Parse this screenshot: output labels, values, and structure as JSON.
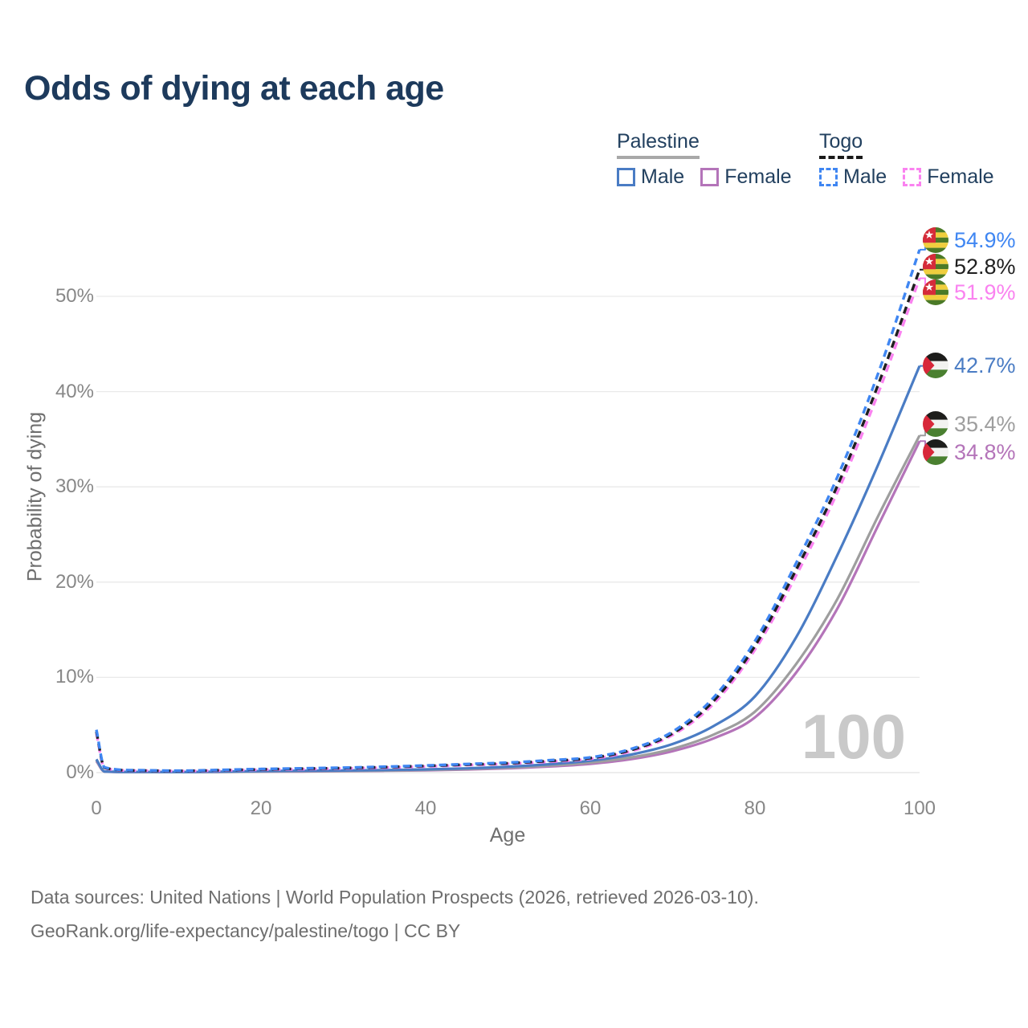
{
  "title": "Odds of dying at each age",
  "legend": {
    "groups": [
      {
        "name": "Palestine",
        "line_style": "solid",
        "line_color": "#a8a8a8",
        "items": [
          {
            "label": "Male",
            "color": "#4a7cc4",
            "style": "solid"
          },
          {
            "label": "Female",
            "color": "#b474b9",
            "style": "solid"
          }
        ]
      },
      {
        "name": "Togo",
        "line_style": "dashed",
        "line_color": "#1a1a1a",
        "items": [
          {
            "label": "Male",
            "color": "#3f86f2",
            "style": "dashed"
          },
          {
            "label": "Female",
            "color": "#fa82f0",
            "style": "dashed"
          }
        ]
      }
    ]
  },
  "age_indicator": "100",
  "footer": {
    "line1": "Data sources: United Nations | World Population Prospects (2026, retrieved 2026-03-10).",
    "line2": "GeoRank.org/life-expectancy/palestine/togo | CC BY"
  },
  "chart_data": {
    "type": "line",
    "title": "Odds of dying at each age",
    "xlabel": "Age",
    "ylabel": "Probability of dying",
    "x_ticks": [
      0,
      20,
      40,
      60,
      80,
      100
    ],
    "y_ticks": [
      "0%",
      "10%",
      "20%",
      "30%",
      "40%",
      "50%"
    ],
    "xlim": [
      0,
      100
    ],
    "ylim": [
      0,
      58
    ],
    "grid": "horizontal",
    "legend_position": "top-right",
    "ages": [
      0,
      1,
      5,
      10,
      15,
      20,
      25,
      30,
      35,
      40,
      45,
      50,
      55,
      60,
      65,
      70,
      75,
      80,
      85,
      90,
      95,
      100
    ],
    "series": [
      {
        "name": "Togo Male",
        "country": "Togo",
        "sex": "male",
        "flag": "togo",
        "color": "#3f86f2",
        "dash": true,
        "end_label": "54.9%",
        "end_value": 54.9,
        "values": [
          4.5,
          0.55,
          0.25,
          0.2,
          0.28,
          0.38,
          0.45,
          0.52,
          0.62,
          0.75,
          0.9,
          1.05,
          1.3,
          1.6,
          2.5,
          4.3,
          7.9,
          13.8,
          22.0,
          31.0,
          42.0,
          54.9
        ]
      },
      {
        "name": "Togo",
        "country": "Togo",
        "sex": "both",
        "flag": "togo",
        "color": "#1f1f1f",
        "dash": true,
        "end_label": "52.8%",
        "end_value": 52.8,
        "values": [
          4.3,
          0.5,
          0.22,
          0.18,
          0.25,
          0.34,
          0.41,
          0.48,
          0.57,
          0.7,
          0.84,
          0.98,
          1.22,
          1.52,
          2.38,
          4.12,
          7.55,
          13.3,
          21.3,
          30.1,
          40.8,
          52.8
        ]
      },
      {
        "name": "Togo Female",
        "country": "Togo",
        "sex": "female",
        "flag": "togo",
        "color": "#fa82f0",
        "dash": true,
        "end_label": "51.9%",
        "end_value": 51.9,
        "values": [
          4.1,
          0.46,
          0.2,
          0.16,
          0.22,
          0.3,
          0.36,
          0.43,
          0.52,
          0.64,
          0.78,
          0.92,
          1.14,
          1.44,
          2.25,
          3.95,
          7.25,
          12.9,
          20.7,
          29.4,
          39.9,
          51.9
        ]
      },
      {
        "name": "Palestine Male",
        "country": "Palestine",
        "sex": "male",
        "flag": "palestine",
        "color": "#4a7cc4",
        "dash": false,
        "end_label": "42.7%",
        "end_value": 42.7,
        "values": [
          1.4,
          0.12,
          0.07,
          0.06,
          0.1,
          0.16,
          0.19,
          0.22,
          0.27,
          0.34,
          0.45,
          0.62,
          0.88,
          1.25,
          1.9,
          3.0,
          4.9,
          8.0,
          14.2,
          22.8,
          32.4,
          42.7
        ]
      },
      {
        "name": "Palestine",
        "country": "Palestine",
        "sex": "both",
        "flag": "palestine",
        "color": "#9e9e9e",
        "dash": false,
        "end_label": "35.4%",
        "end_value": 35.4,
        "values": [
          1.3,
          0.11,
          0.06,
          0.05,
          0.08,
          0.12,
          0.15,
          0.18,
          0.22,
          0.28,
          0.38,
          0.52,
          0.74,
          1.05,
          1.6,
          2.5,
          4.0,
          6.4,
          11.4,
          18.2,
          27.0,
          35.4
        ]
      },
      {
        "name": "Palestine Female",
        "country": "Palestine",
        "sex": "female",
        "flag": "palestine",
        "color": "#b474b9",
        "dash": false,
        "end_label": "34.8%",
        "end_value": 34.8,
        "values": [
          1.2,
          0.1,
          0.05,
          0.05,
          0.07,
          0.1,
          0.12,
          0.15,
          0.19,
          0.24,
          0.33,
          0.45,
          0.64,
          0.92,
          1.42,
          2.25,
          3.6,
          5.8,
          10.5,
          17.2,
          26.0,
          34.8
        ]
      }
    ]
  }
}
